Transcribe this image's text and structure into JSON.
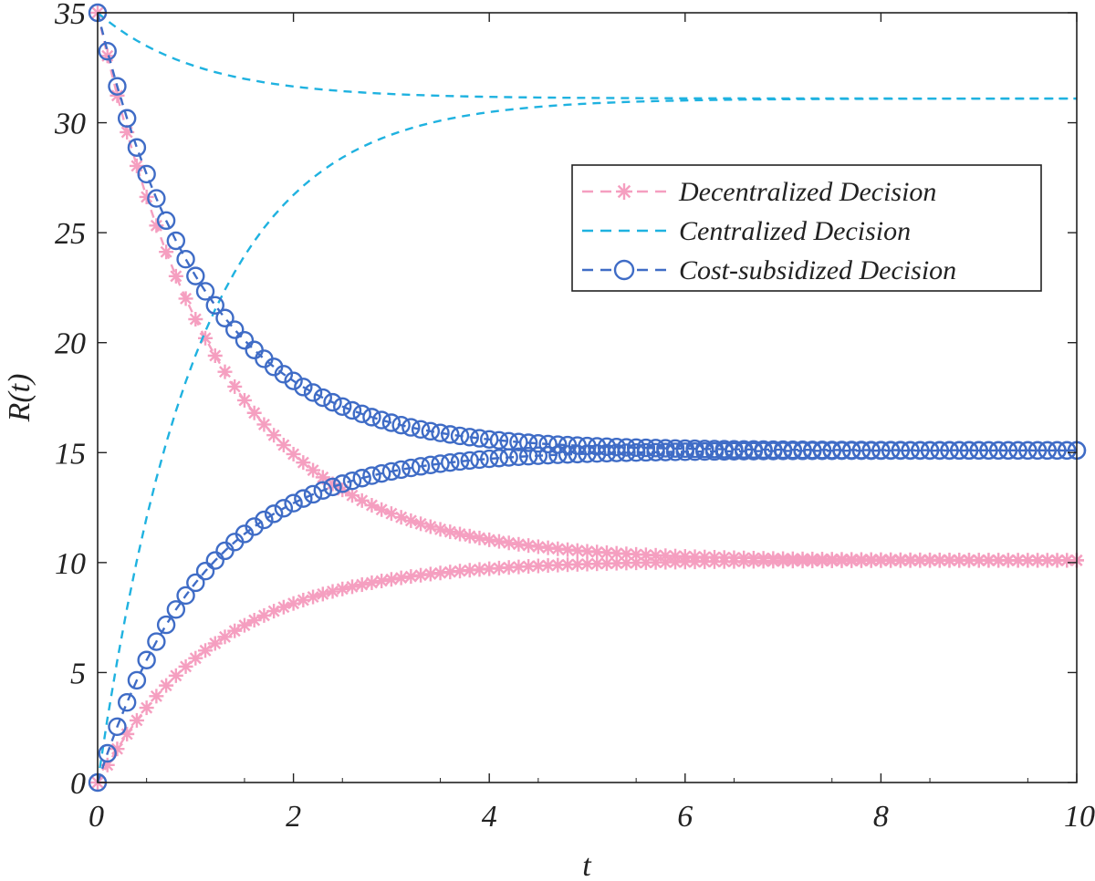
{
  "chart_data": {
    "type": "line",
    "title": "",
    "xlabel": "t",
    "ylabel": "R(t)",
    "xlim": [
      0,
      10
    ],
    "ylim": [
      0,
      35
    ],
    "xticks": [
      0,
      2,
      4,
      6,
      8,
      10
    ],
    "xtick_labels": [
      "0",
      "2",
      "4",
      "6",
      "8",
      "10"
    ],
    "yticks": [
      0,
      5,
      10,
      15,
      20,
      25,
      30,
      35
    ],
    "ytick_labels": [
      "0",
      "5",
      "10",
      "15",
      "20",
      "25",
      "30",
      "35"
    ],
    "legend_position": "top-right",
    "sample_step": 0.1,
    "series": [
      {
        "name": "Decentralized Decision",
        "color": "#f59fc0",
        "marker": "asterisk",
        "line": "dashed",
        "curves": [
          {
            "start": 0,
            "steady": 10.1,
            "rate": 0.82
          },
          {
            "start": 35,
            "steady": 10.1,
            "rate": 0.82
          }
        ]
      },
      {
        "name": "Centralized Decision",
        "color": "#1fb2e0",
        "marker": "none",
        "line": "dashed",
        "curves": [
          {
            "start": 0,
            "steady": 31.1,
            "rate": 0.98
          },
          {
            "start": 35,
            "steady": 31.1,
            "rate": 0.98
          }
        ]
      },
      {
        "name": "Cost-subsidized Decision",
        "color": "#3f6cc6",
        "marker": "circle",
        "line": "dashed",
        "curves": [
          {
            "start": 0,
            "steady": 15.1,
            "rate": 0.92
          },
          {
            "start": 35,
            "steady": 15.1,
            "rate": 0.92
          }
        ]
      }
    ]
  }
}
